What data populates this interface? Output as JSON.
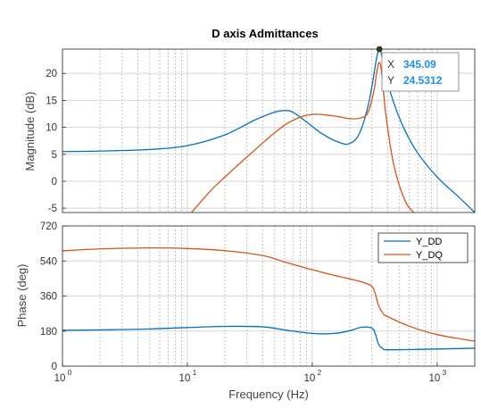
{
  "chart_data": [
    {
      "type": "line",
      "title": "D axis Admittances",
      "xlabel": "",
      "ylabel": "Magnitude (dB)",
      "xscale": "log",
      "xlim": [
        1,
        2000
      ],
      "ylim": [
        -5.8,
        24.5
      ],
      "yticks": [
        -5,
        0,
        5,
        10,
        15,
        20
      ],
      "grid": true,
      "series": [
        {
          "name": "Y_DD",
          "color": "#0072BD",
          "x": [
            1,
            2,
            5,
            10,
            20,
            35,
            50,
            60,
            70,
            90,
            120,
            160,
            200,
            240,
            280,
            310,
            330,
            345.09,
            360,
            390,
            450,
            550,
            700,
            1000,
            1500,
            2000
          ],
          "y": [
            5.5,
            5.6,
            5.9,
            6.6,
            8.6,
            11.4,
            12.8,
            13.1,
            12.8,
            11.0,
            8.8,
            7.3,
            7.0,
            9.0,
            14.0,
            19.5,
            23.2,
            24.53,
            23.3,
            19.5,
            14.5,
            9.5,
            5.2,
            0.8,
            -3.0,
            -5.8
          ]
        },
        {
          "name": "Y_DQ",
          "color": "#D95319",
          "x": [
            10.8,
            15,
            20,
            30,
            50,
            70,
            100,
            150,
            200,
            250,
            280,
            310,
            330,
            345,
            360,
            390,
            450,
            550,
            650
          ],
          "y": [
            -5.8,
            -2.0,
            0.8,
            4.5,
            9.0,
            11.3,
            12.4,
            12.1,
            11.6,
            11.8,
            12.8,
            16.5,
            20.5,
            22.0,
            20.0,
            12.0,
            3.0,
            -3.5,
            -5.8
          ]
        }
      ],
      "datatip": {
        "x_label": "X",
        "x_value": "345.09",
        "y_label": "Y",
        "y_value": "24.5312",
        "x": 345.09,
        "y": 24.5312
      }
    },
    {
      "type": "line",
      "title": "",
      "xlabel": "Frequency  (Hz)",
      "ylabel": "Phase (deg)",
      "xscale": "log",
      "xlim": [
        1,
        2000
      ],
      "ylim": [
        0,
        720
      ],
      "yticks": [
        0,
        180,
        360,
        540,
        720
      ],
      "grid": true,
      "legend": "top-right",
      "series": [
        {
          "name": "Y_DD",
          "color": "#0072BD",
          "x": [
            1,
            2,
            5,
            10,
            20,
            40,
            60,
            100,
            150,
            200,
            250,
            300,
            320,
            340,
            370,
            400,
            600,
            1000,
            2000
          ],
          "y": [
            184,
            186,
            191,
            198,
            204,
            202,
            186,
            168,
            168,
            182,
            200,
            195,
            165,
            112,
            88,
            84,
            85,
            88,
            92
          ]
        },
        {
          "name": "Y_DQ",
          "color": "#D95319",
          "x": [
            1,
            2,
            5,
            10,
            20,
            40,
            60,
            100,
            150,
            200,
            250,
            300,
            320,
            340,
            370,
            400,
            600,
            1000,
            2000
          ],
          "y": [
            592,
            602,
            607,
            604,
            593,
            568,
            535,
            495,
            466,
            448,
            432,
            410,
            370,
            310,
            270,
            255,
            205,
            162,
            128
          ]
        }
      ]
    }
  ]
}
